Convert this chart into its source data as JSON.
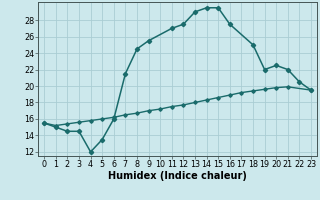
{
  "xlabel": "Humidex (Indice chaleur)",
  "background_color": "#cce8ec",
  "grid_color": "#aacdd3",
  "line_color": "#1a6b6b",
  "x": [
    0,
    1,
    2,
    3,
    4,
    5,
    6,
    7,
    8,
    9,
    10,
    11,
    12,
    13,
    14,
    15,
    16,
    17,
    18,
    19,
    20,
    21,
    22,
    23
  ],
  "line1": [
    15.5,
    15.0,
    14.5,
    14.5,
    12.0,
    13.5,
    16.0,
    21.5,
    24.5,
    25.5,
    27.0,
    27.5,
    29.0,
    29.5,
    29.5,
    27.5,
    25.0,
    22.0,
    22.5,
    22.0,
    20.5,
    19.5
  ],
  "line1_x": [
    0,
    1,
    2,
    3,
    4,
    5,
    6,
    7,
    8,
    9,
    11,
    12,
    13,
    14,
    15,
    16,
    18,
    19,
    20,
    21,
    22,
    23
  ],
  "line2": [
    15.5,
    15.2,
    15.4,
    15.6,
    15.8,
    16.0,
    16.2,
    16.5,
    16.7,
    17.0,
    17.2,
    17.5,
    17.7,
    18.0,
    18.3,
    18.6,
    18.9,
    19.2,
    19.4,
    19.6,
    19.8,
    19.9,
    19.5
  ],
  "line2_x": [
    0,
    1,
    2,
    3,
    4,
    5,
    6,
    7,
    8,
    9,
    10,
    11,
    12,
    13,
    14,
    15,
    16,
    17,
    18,
    19,
    20,
    21,
    23
  ],
  "ylim": [
    11.5,
    30.2
  ],
  "xlim": [
    -0.5,
    23.5
  ],
  "yticks": [
    12,
    14,
    16,
    18,
    20,
    22,
    24,
    26,
    28
  ],
  "xtick_labels": [
    "0",
    "1",
    "2",
    "3",
    "4",
    "5",
    "6",
    "7",
    "8",
    "9",
    "1011121314151617181920212223"
  ],
  "tick_fontsize": 5.8,
  "xlabel_fontsize": 7.0
}
